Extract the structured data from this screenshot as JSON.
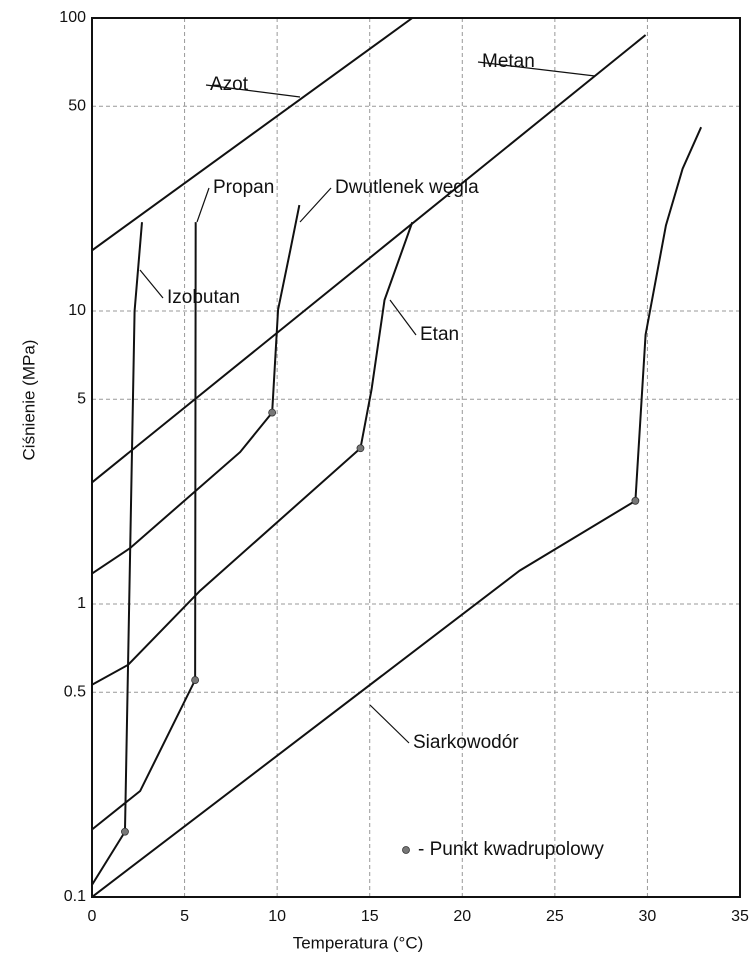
{
  "chart_data": {
    "type": "line",
    "x_label": "Temperatura (°C)",
    "y_label": "Ciśnienie (MPa)",
    "log_y": true,
    "grid": true,
    "xlim": [
      0,
      35
    ],
    "ylim": [
      0.1,
      100
    ],
    "xticks": [
      0,
      5,
      10,
      15,
      20,
      25,
      30,
      35
    ],
    "yticks": [
      0.1,
      0.5,
      1,
      5,
      10,
      50,
      100
    ],
    "series": [
      {
        "name": "Azot",
        "color": "#111111",
        "x": [
          0,
          17.3
        ],
        "values": [
          16.1,
          100
        ]
      },
      {
        "name": "Metan",
        "color": "#111111",
        "x": [
          0,
          29.9
        ],
        "values": [
          2.6,
          87.5
        ]
      },
      {
        "name": "Propan",
        "color": "#111111",
        "x": [
          0,
          2.6,
          5.57,
          5.6
        ],
        "values": [
          0.17,
          0.23,
          0.55,
          20.1
        ]
      },
      {
        "name": "Dwutlenek węgla",
        "color": "#111111",
        "x": [
          0,
          2.05,
          8,
          9.73,
          10.05,
          10.7,
          11.2
        ],
        "values": [
          1.27,
          1.55,
          3.3,
          4.5,
          10.1,
          16,
          23
        ]
      },
      {
        "name": "Izobutan",
        "color": "#111111",
        "x": [
          0,
          1.78,
          2.3,
          2.7
        ],
        "values": [
          0.11,
          0.167,
          10,
          20.1
        ]
      },
      {
        "name": "Etan",
        "color": "#111111",
        "x": [
          0,
          1.95,
          5.84,
          14.5,
          15.1,
          15.8,
          17.3
        ],
        "values": [
          0.53,
          0.62,
          1.11,
          3.4,
          5.4,
          10.9,
          20.1
        ]
      },
      {
        "name": "Siarkowodór",
        "color": "#111111",
        "x": [
          0,
          23.1,
          29.35,
          29.9,
          31.0,
          31.9,
          32.9
        ],
        "values": [
          0.1,
          1.3,
          2.25,
          8.3,
          19.6,
          30.6,
          42.4
        ]
      }
    ],
    "quadruple_points": {
      "name": "- Punkt kwadrupolowy",
      "color": "#777777",
      "x": [
        1.78,
        5.57,
        9.73,
        14.5,
        29.35
      ],
      "values": [
        0.167,
        0.55,
        4.5,
        3.4,
        2.25
      ]
    }
  }
}
